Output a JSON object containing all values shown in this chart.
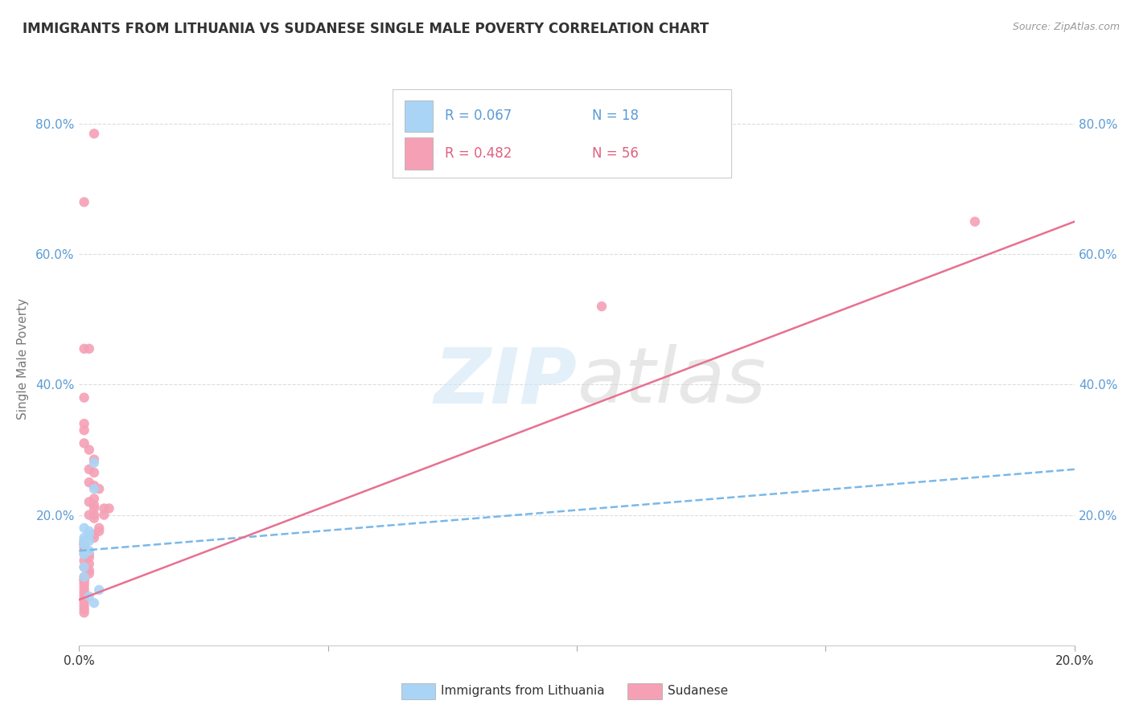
{
  "title": "IMMIGRANTS FROM LITHUANIA VS SUDANESE SINGLE MALE POVERTY CORRELATION CHART",
  "source": "Source: ZipAtlas.com",
  "ylabel": "Single Male Poverty",
  "legend_label1": "Immigrants from Lithuania",
  "legend_label2": "Sudanese",
  "legend_r1": "R = 0.067",
  "legend_n1": "N = 18",
  "legend_r2": "R = 0.482",
  "legend_n2": "N = 56",
  "color_blue": "#aad4f5",
  "color_pink": "#f5a0b5",
  "color_blue_line": "#7ab8e8",
  "color_pink_line": "#e87090",
  "color_blue_text": "#5b9bd5",
  "color_pink_text": "#e06080",
  "xlim": [
    0.0,
    0.2
  ],
  "ylim": [
    0.0,
    0.88
  ],
  "yticks": [
    0.0,
    0.2,
    0.4,
    0.6,
    0.8
  ],
  "ytick_labels": [
    "",
    "20.0%",
    "40.0%",
    "60.0%",
    "80.0%"
  ],
  "xticks": [
    0.0,
    0.05,
    0.1,
    0.15,
    0.2
  ],
  "xtick_labels": [
    "0.0%",
    "",
    "",
    "",
    "20.0%"
  ],
  "lithuania_x": [
    0.001,
    0.001,
    0.001,
    0.002,
    0.002,
    0.001,
    0.001,
    0.002,
    0.003,
    0.003,
    0.002,
    0.001,
    0.001,
    0.002,
    0.003,
    0.004,
    0.001,
    0.001
  ],
  "lithuania_y": [
    0.155,
    0.14,
    0.16,
    0.17,
    0.16,
    0.18,
    0.14,
    0.145,
    0.28,
    0.24,
    0.175,
    0.165,
    0.155,
    0.075,
    0.065,
    0.085,
    0.105,
    0.12
  ],
  "sudanese_x": [
    0.003,
    0.001,
    0.001,
    0.002,
    0.001,
    0.001,
    0.001,
    0.001,
    0.002,
    0.003,
    0.002,
    0.003,
    0.002,
    0.003,
    0.004,
    0.003,
    0.002,
    0.003,
    0.005,
    0.003,
    0.006,
    0.002,
    0.003,
    0.005,
    0.003,
    0.004,
    0.004,
    0.003,
    0.003,
    0.001,
    0.001,
    0.001,
    0.001,
    0.001,
    0.002,
    0.002,
    0.001,
    0.002,
    0.001,
    0.002,
    0.002,
    0.001,
    0.001,
    0.001,
    0.001,
    0.001,
    0.001,
    0.001,
    0.001,
    0.001,
    0.105,
    0.001,
    0.001,
    0.001,
    0.18,
    0.001
  ],
  "sudanese_y": [
    0.785,
    0.68,
    0.455,
    0.455,
    0.38,
    0.34,
    0.33,
    0.31,
    0.3,
    0.285,
    0.27,
    0.265,
    0.25,
    0.245,
    0.24,
    0.225,
    0.22,
    0.215,
    0.21,
    0.21,
    0.21,
    0.2,
    0.2,
    0.2,
    0.195,
    0.18,
    0.175,
    0.17,
    0.165,
    0.16,
    0.155,
    0.155,
    0.15,
    0.145,
    0.14,
    0.135,
    0.13,
    0.125,
    0.12,
    0.115,
    0.11,
    0.105,
    0.1,
    0.1,
    0.095,
    0.09,
    0.085,
    0.08,
    0.075,
    0.07,
    0.52,
    0.065,
    0.06,
    0.055,
    0.65,
    0.05
  ],
  "lit_trend_x": [
    0.0,
    0.2
  ],
  "lit_trend_y": [
    0.145,
    0.27
  ],
  "sud_trend_x": [
    0.0,
    0.2
  ],
  "sud_trend_y": [
    0.07,
    0.65
  ]
}
